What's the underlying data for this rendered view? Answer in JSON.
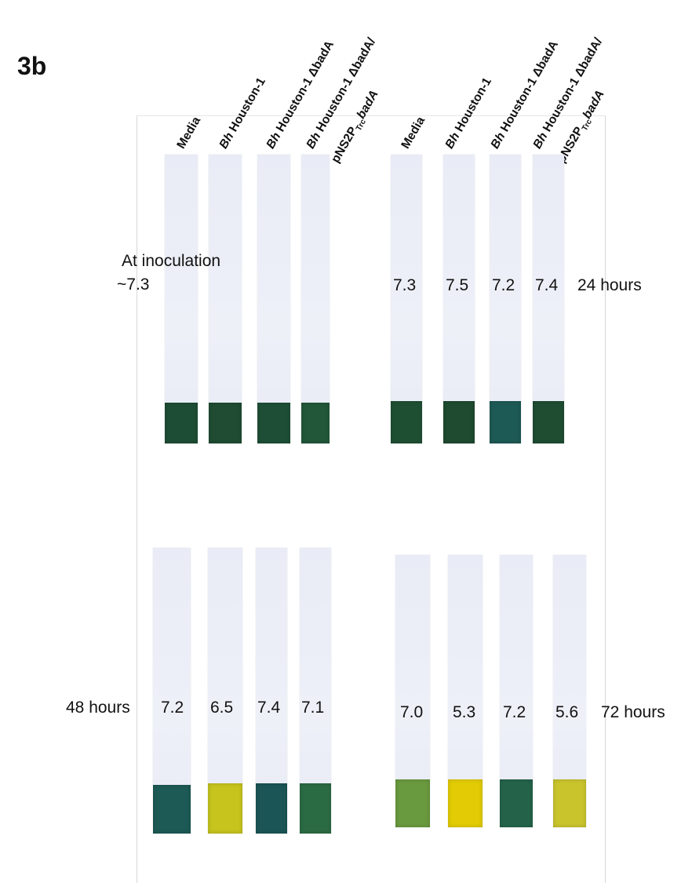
{
  "panel_label": "3b",
  "column_labels": {
    "media": "Media",
    "bh": "Bh",
    "houston": " Houston-1",
    "delta_suffix": " Houston-1 ΔbadA",
    "comp_line1": " Houston-1 ΔbadA/",
    "comp_line2_prefix": "pNS2P",
    "comp_line2_sub": "Trc",
    "comp_line2_suffix": "badA"
  },
  "inoculation": {
    "label": "At inoculation",
    "value": "~7.3"
  },
  "timepoints": [
    {
      "label": "24 hours",
      "values": [
        "7.3",
        "7.5",
        "7.2",
        "7.4"
      ],
      "pad_colors": [
        "#1f4f33",
        "#1f4b30",
        "#1e5a55",
        "#1e4d32"
      ]
    },
    {
      "label": "48 hours",
      "values": [
        "7.2",
        "6.5",
        "7.4",
        "7.1"
      ],
      "pad_colors": [
        "#1d5a55",
        "#c6c41d",
        "#1b5556",
        "#2b6b44"
      ]
    },
    {
      "label": "72 hours",
      "values": [
        "7.0",
        "5.3",
        "7.2",
        "5.6"
      ],
      "pad_colors": [
        "#6a9a3f",
        "#e3cc05",
        "#24634a",
        "#c9c42c"
      ]
    }
  ],
  "initial_pad_colors": [
    "#1e4d35",
    "#1f4c33",
    "#1e4f36",
    "#22573a"
  ]
}
